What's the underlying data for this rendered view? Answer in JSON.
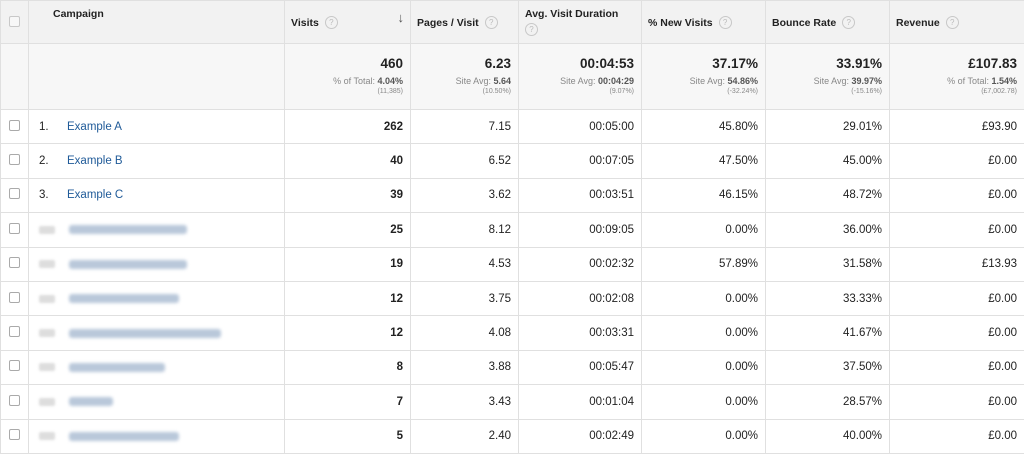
{
  "columns": {
    "campaign": "Campaign",
    "visits": "Visits",
    "pages_visit": "Pages / Visit",
    "avg_duration": "Avg. Visit Duration",
    "new_visits": "% New Visits",
    "bounce_rate": "Bounce Rate",
    "revenue": "Revenue",
    "help_glyph": "?",
    "sort_glyph": "↓"
  },
  "totals": {
    "visits": {
      "value": "460",
      "sub_label": "% of Total:",
      "sub_value": "4.04%",
      "sub2": "(11,385)"
    },
    "pages_visit": {
      "value": "6.23",
      "sub_label": "Site Avg:",
      "sub_value": "5.64",
      "sub2": "(10.50%)"
    },
    "avg_duration": {
      "value": "00:04:53",
      "sub_label": "Site Avg:",
      "sub_value": "00:04:29",
      "sub2": "(9.07%)"
    },
    "new_visits": {
      "value": "37.17%",
      "sub_label": "Site Avg:",
      "sub_value": "54.86%",
      "sub2": "(-32.24%)"
    },
    "bounce_rate": {
      "value": "33.91%",
      "sub_label": "Site Avg:",
      "sub_value": "39.97%",
      "sub2": "(-15.16%)"
    },
    "revenue": {
      "value": "£107.83",
      "sub_label": "% of Total:",
      "sub_value": "1.54%",
      "sub2": "(£7,002.78)"
    }
  },
  "rows": [
    {
      "index": "1.",
      "name": "Example A",
      "visits": "262",
      "pages_visit": "7.15",
      "avg_duration": "00:05:00",
      "new_visits": "45.80%",
      "bounce_rate": "29.01%",
      "revenue": "£93.90"
    },
    {
      "index": "2.",
      "name": "Example B",
      "visits": "40",
      "pages_visit": "6.52",
      "avg_duration": "00:07:05",
      "new_visits": "47.50%",
      "bounce_rate": "45.00%",
      "revenue": "£0.00"
    },
    {
      "index": "3.",
      "name": "Example C",
      "visits": "39",
      "pages_visit": "3.62",
      "avg_duration": "00:03:51",
      "new_visits": "46.15%",
      "bounce_rate": "48.72%",
      "revenue": "£0.00"
    },
    {
      "visits": "25",
      "pages_visit": "8.12",
      "avg_duration": "00:09:05",
      "new_visits": "0.00%",
      "bounce_rate": "36.00%",
      "revenue": "£0.00"
    },
    {
      "visits": "19",
      "pages_visit": "4.53",
      "avg_duration": "00:02:32",
      "new_visits": "57.89%",
      "bounce_rate": "31.58%",
      "revenue": "£13.93"
    },
    {
      "visits": "12",
      "pages_visit": "3.75",
      "avg_duration": "00:02:08",
      "new_visits": "0.00%",
      "bounce_rate": "33.33%",
      "revenue": "£0.00"
    },
    {
      "visits": "12",
      "pages_visit": "4.08",
      "avg_duration": "00:03:31",
      "new_visits": "0.00%",
      "bounce_rate": "41.67%",
      "revenue": "£0.00"
    },
    {
      "visits": "8",
      "pages_visit": "3.88",
      "avg_duration": "00:05:47",
      "new_visits": "0.00%",
      "bounce_rate": "37.50%",
      "revenue": "£0.00"
    },
    {
      "visits": "7",
      "pages_visit": "3.43",
      "avg_duration": "00:01:04",
      "new_visits": "0.00%",
      "bounce_rate": "28.57%",
      "revenue": "£0.00"
    },
    {
      "visits": "5",
      "pages_visit": "2.40",
      "avg_duration": "00:02:49",
      "new_visits": "0.00%",
      "bounce_rate": "40.00%",
      "revenue": "£0.00"
    }
  ]
}
